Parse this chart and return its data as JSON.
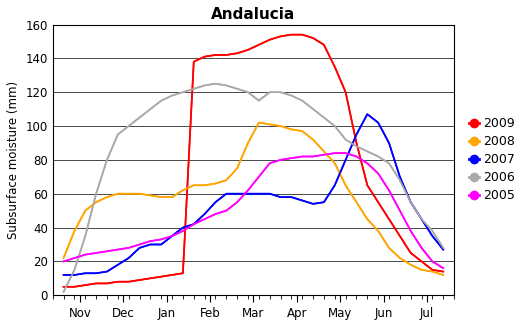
{
  "title": "Andalucia",
  "ylabel": "Subsurface moisture (mm)",
  "ylim": [
    0,
    160
  ],
  "yticks": [
    0,
    20,
    40,
    60,
    80,
    100,
    120,
    140,
    160
  ],
  "month_labels": [
    "Nov",
    "Dec",
    "Jan",
    "Feb",
    "Mar",
    "Apr",
    "May",
    "Jun",
    "Jul"
  ],
  "series": {
    "2009": {
      "color": "#ff0000",
      "y": [
        5,
        5,
        6,
        7,
        7,
        8,
        8,
        9,
        10,
        11,
        12,
        13,
        138,
        141,
        142,
        142,
        143,
        145,
        148,
        151,
        153,
        154,
        154,
        152,
        148,
        135,
        120,
        90,
        65,
        55,
        45,
        35,
        25,
        20,
        15,
        14
      ]
    },
    "2008": {
      "color": "#ffa500",
      "y": [
        22,
        38,
        50,
        55,
        58,
        60,
        60,
        60,
        59,
        58,
        58,
        62,
        65,
        65,
        66,
        68,
        75,
        90,
        102,
        101,
        100,
        98,
        97,
        92,
        85,
        78,
        65,
        55,
        45,
        38,
        28,
        22,
        18,
        15,
        14,
        12
      ]
    },
    "2007": {
      "color": "#0000ff",
      "y": [
        12,
        12,
        13,
        13,
        14,
        18,
        22,
        28,
        30,
        30,
        35,
        40,
        42,
        48,
        55,
        60,
        60,
        60,
        60,
        60,
        58,
        58,
        56,
        54,
        55,
        65,
        80,
        95,
        107,
        102,
        90,
        70,
        55,
        45,
        35,
        27
      ]
    },
    "2006": {
      "color": "#aaaaaa",
      "y": [
        2,
        15,
        35,
        60,
        80,
        95,
        100,
        105,
        110,
        115,
        118,
        120,
        122,
        124,
        125,
        124,
        122,
        120,
        115,
        120,
        120,
        118,
        115,
        110,
        105,
        100,
        92,
        88,
        85,
        82,
        78,
        68,
        55,
        45,
        38,
        28
      ]
    },
    "2005": {
      "color": "#ff00ff",
      "y": [
        20,
        22,
        24,
        25,
        26,
        27,
        28,
        30,
        32,
        33,
        35,
        38,
        42,
        45,
        48,
        50,
        55,
        62,
        70,
        78,
        80,
        81,
        82,
        82,
        83,
        84,
        84,
        82,
        78,
        72,
        62,
        50,
        38,
        28,
        20,
        16
      ]
    }
  },
  "legend_order": [
    "2009",
    "2008",
    "2007",
    "2006",
    "2005"
  ],
  "n_points": 36,
  "ticks_per_month": 4,
  "background_color": "#ffffff"
}
